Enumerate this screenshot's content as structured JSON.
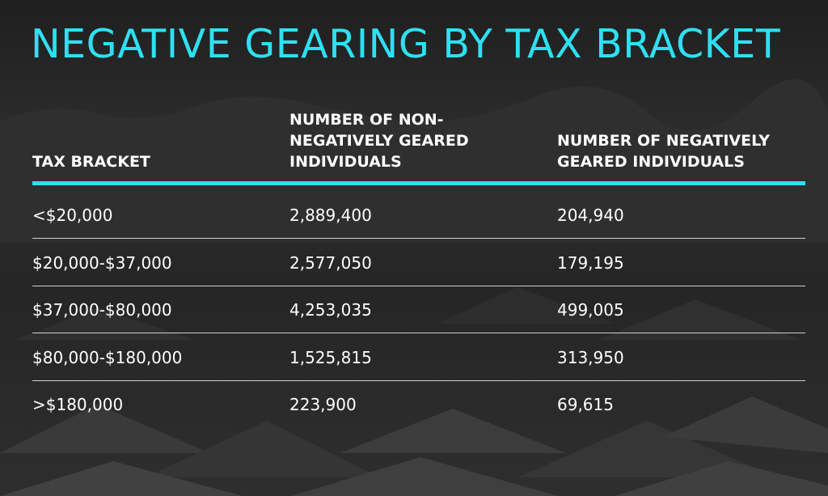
{
  "title": "NEGATIVE GEARING BY TAX BRACKET",
  "colors": {
    "accent": "#2ee0f2",
    "text": "#ffffff",
    "background": "#262626"
  },
  "table": {
    "headers": [
      "TAX BRACKET",
      "NUMBER OF NON-\nNEGATIVELY GEARED\nINDIVIDUALS",
      "NUMBER OF NEGATIVELY\nGEARED INDIVIDUALS"
    ],
    "rows": [
      [
        "<$20,000",
        "2,889,400",
        "204,940"
      ],
      [
        "$20,000-$37,000",
        "2,577,050",
        "179,195"
      ],
      [
        "$37,000-$80,000",
        "4,253,035",
        "499,005"
      ],
      [
        "$80,000-$180,000",
        "1,525,815",
        "313,950"
      ],
      [
        ">$180,000",
        "223,900",
        "69,615"
      ]
    ]
  },
  "chart_data": {
    "type": "table",
    "title": "NEGATIVE GEARING BY TAX BRACKET",
    "columns": [
      "TAX BRACKET",
      "NUMBER OF NON-NEGATIVELY GEARED INDIVIDUALS",
      "NUMBER OF NEGATIVELY GEARED INDIVIDUALS"
    ],
    "categories": [
      "<$20,000",
      "$20,000-$37,000",
      "$37,000-$80,000",
      "$80,000-$180,000",
      ">$180,000"
    ],
    "series": [
      {
        "name": "NUMBER OF NON-NEGATIVELY GEARED INDIVIDUALS",
        "values": [
          2889400,
          2577050,
          4253035,
          1525815,
          223900
        ]
      },
      {
        "name": "NUMBER OF NEGATIVELY GEARED INDIVIDUALS",
        "values": [
          204940,
          179195,
          499005,
          313950,
          69615
        ]
      }
    ]
  }
}
